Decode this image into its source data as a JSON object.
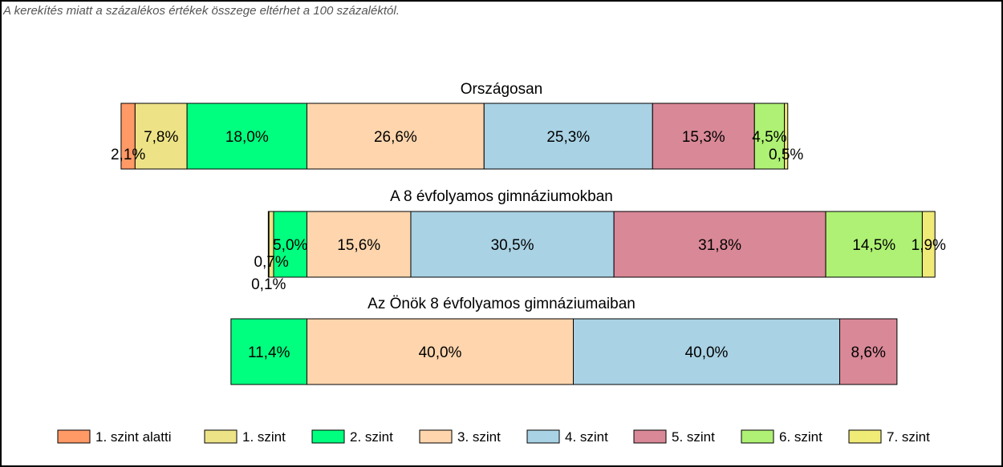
{
  "note": "A kerekítés miatt a  százalékos értékek összege eltérhet a 100 százaléktól.",
  "chart_data": {
    "type": "bar",
    "orientation": "horizontal-stacked",
    "levels": [
      {
        "name": "1. szint alatti",
        "color": "#FF9966"
      },
      {
        "name": "1. szint",
        "color": "#EDE386"
      },
      {
        "name": "2. szint",
        "color": "#00FF7F"
      },
      {
        "name": "3. szint",
        "color": "#FED5AD"
      },
      {
        "name": "4. szint",
        "color": "#A9D2E4"
      },
      {
        "name": "5. szint",
        "color": "#D98897"
      },
      {
        "name": "6. szint",
        "color": "#AEF174"
      },
      {
        "name": "7. szint",
        "color": "#F0EA77"
      }
    ],
    "groups": [
      {
        "title": "Országosan",
        "labels": [
          "2,1%",
          "7,8%",
          "18,0%",
          "26,6%",
          "25,3%",
          "15,3%",
          "4,5%",
          "0,5%"
        ],
        "values": [
          2.1,
          7.8,
          18.0,
          26.6,
          25.3,
          15.3,
          4.5,
          0.5
        ]
      },
      {
        "title": "A 8 évfolyamos gimnáziumokban",
        "labels": [
          "0,1%",
          "0,7%",
          "5,0%",
          "15,6%",
          "30,5%",
          "31,8%",
          "14,5%",
          "1,9%"
        ],
        "values": [
          0.1,
          0.7,
          5.0,
          15.6,
          30.5,
          31.8,
          14.5,
          1.9
        ]
      },
      {
        "title": "Az Önök 8 évfolyamos gimnáziumaiban",
        "labels": [
          "",
          "",
          "11,4%",
          "40,0%",
          "40,0%",
          "8,6%",
          "",
          ""
        ],
        "values": [
          0,
          0,
          11.4,
          40.0,
          40.0,
          8.6,
          0,
          0
        ]
      }
    ],
    "legend_position": "bottom",
    "alignment": "aligned at boundary between 2. szint and 3. szint"
  }
}
